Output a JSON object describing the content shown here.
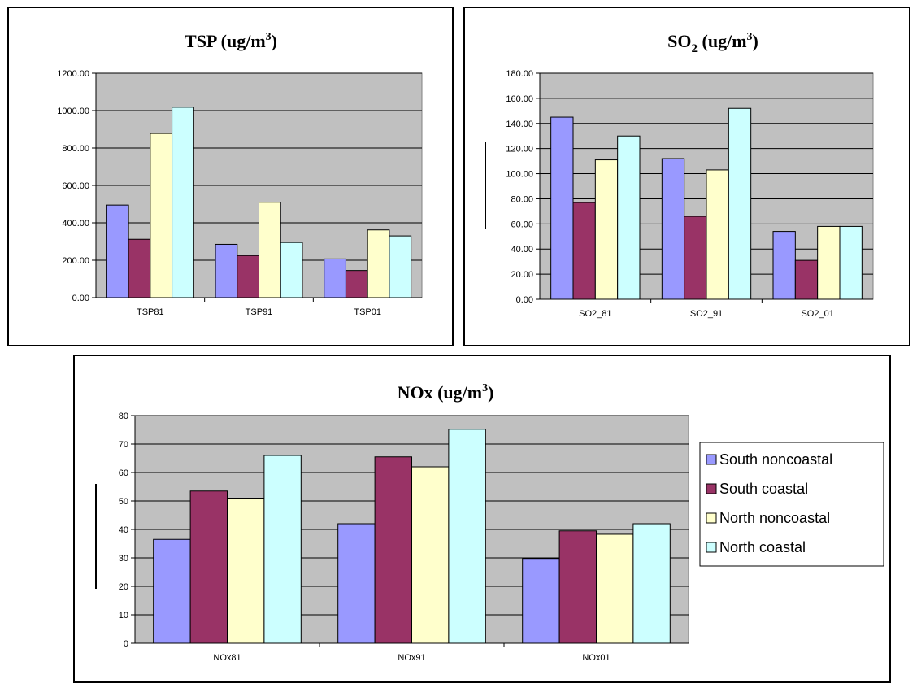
{
  "chart_data": [
    {
      "id": "tsp",
      "type": "bar",
      "title": "TSP (ug/m",
      "title_sup": "3",
      "title_end": ")",
      "categories": [
        "TSP81",
        "TSP91",
        "TSP01"
      ],
      "ylim": [
        0,
        1200
      ],
      "yticks": [
        "0.00",
        "200.00",
        "400.00",
        "600.00",
        "800.00",
        "1000.00",
        "1200.00"
      ],
      "series": [
        {
          "name": "South noncoastal",
          "values": [
            495,
            285,
            207
          ]
        },
        {
          "name": "South coastal",
          "values": [
            312,
            225,
            145
          ]
        },
        {
          "name": "North noncoastal",
          "values": [
            878,
            510,
            362
          ]
        },
        {
          "name": "North coastal",
          "values": [
            1018,
            295,
            330
          ]
        }
      ],
      "grid": true,
      "legend": null
    },
    {
      "id": "so2",
      "type": "bar",
      "title": "SO",
      "title_sub": "2",
      "title_mid": " (ug/m",
      "title_sup": "3",
      "title_end": ")",
      "categories": [
        "SO2_81",
        "SO2_91",
        "SO2_01"
      ],
      "ylim": [
        0,
        180
      ],
      "yticks": [
        "0.00",
        "20.00",
        "40.00",
        "60.00",
        "80.00",
        "100.00",
        "120.00",
        "140.00",
        "160.00",
        "180.00"
      ],
      "series": [
        {
          "name": "South noncoastal",
          "values": [
            145,
            112,
            54
          ]
        },
        {
          "name": "South coastal",
          "values": [
            77,
            66,
            31
          ]
        },
        {
          "name": "North noncoastal",
          "values": [
            111,
            103,
            58
          ]
        },
        {
          "name": "North coastal",
          "values": [
            130,
            152,
            58
          ]
        }
      ],
      "grid": true,
      "legend": null
    },
    {
      "id": "nox",
      "type": "bar",
      "title": "NOx (ug/m",
      "title_sup": "3",
      "title_end": ")",
      "categories": [
        "NOx81",
        "NOx91",
        "NOx01"
      ],
      "ylim": [
        0,
        80
      ],
      "yticks": [
        "0",
        "10",
        "20",
        "30",
        "40",
        "50",
        "60",
        "70",
        "80"
      ],
      "series": [
        {
          "name": "South noncoastal",
          "values": [
            36.5,
            42,
            29.8
          ]
        },
        {
          "name": "South coastal",
          "values": [
            53.5,
            65.5,
            39.5
          ]
        },
        {
          "name": "North noncoastal",
          "values": [
            51,
            62,
            38.3
          ]
        },
        {
          "name": "North coastal",
          "values": [
            66,
            75.2,
            42
          ]
        }
      ],
      "grid": true,
      "legend": "right"
    }
  ],
  "colors": {
    "South noncoastal": "#9999ff",
    "South coastal": "#993366",
    "North noncoastal": "#ffffcc",
    "North coastal": "#ccffff",
    "plot_background": "#c0c0c0",
    "gridline": "#000000"
  }
}
